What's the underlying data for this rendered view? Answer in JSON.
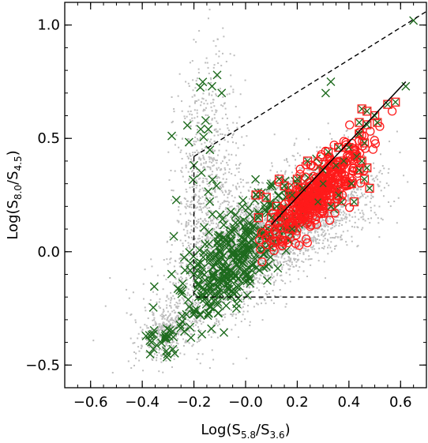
{
  "chart_data": {
    "type": "scatter",
    "xlabel": {
      "base": "Log(S",
      "sub1": "5.8",
      "mid": "/S",
      "sub2": "3.6",
      "end": ")"
    },
    "ylabel": {
      "base": "Log(S",
      "sub1": "8.0",
      "mid": "/S",
      "sub2": "4.5",
      "end": ")"
    },
    "xlim": [
      -0.7,
      0.7
    ],
    "ylim": [
      -0.6,
      1.1
    ],
    "x_ticks": [
      -0.6,
      -0.4,
      -0.2,
      0.0,
      0.2,
      0.4,
      0.6
    ],
    "x_tick_labels": [
      "−0.6",
      "−0.4",
      "−0.2",
      "−0.0",
      "0.2",
      "0.4",
      "0.6"
    ],
    "y_ticks": [
      -0.5,
      0.0,
      0.5,
      1.0
    ],
    "y_tick_labels": [
      "−0.5",
      "0.0",
      "0.5",
      "1.0"
    ],
    "grid": false,
    "colors": {
      "background_points": "#bdbdbd",
      "crosses": "#1e6b1e",
      "circles": "#ff1a1a",
      "lines": "#000000"
    },
    "background_cloud": [
      {
        "cx": 0.05,
        "cy": 0.05,
        "sx": 0.17,
        "sy": 0.17,
        "rho": 0.72,
        "n": 3200
      },
      {
        "cx": -0.15,
        "cy": 0.3,
        "sx": 0.06,
        "sy": 0.28,
        "rho": 0.1,
        "n": 800
      },
      {
        "cx": -0.3,
        "cy": -0.35,
        "sx": 0.06,
        "sy": 0.06,
        "rho": 0.5,
        "n": 400
      },
      {
        "cx": 0.3,
        "cy": 0.15,
        "sx": 0.12,
        "sy": 0.1,
        "rho": 0.6,
        "n": 600
      }
    ],
    "cross_cloud": [
      {
        "cx": -0.05,
        "cy": -0.05,
        "sx": 0.1,
        "sy": 0.12,
        "rho": 0.6,
        "n": 300
      },
      {
        "cx": 0.15,
        "cy": 0.2,
        "sx": 0.1,
        "sy": 0.08,
        "rho": 0.5,
        "n": 90
      },
      {
        "cx": -0.15,
        "cy": 0.45,
        "sx": 0.05,
        "sy": 0.25,
        "rho": 0.1,
        "n": 25
      },
      {
        "cx": -0.32,
        "cy": -0.38,
        "sx": 0.04,
        "sy": 0.05,
        "rho": 0.4,
        "n": 30
      }
    ],
    "cross_points_extra": [
      [
        0.65,
        1.02
      ],
      [
        -0.11,
        0.78
      ],
      [
        -0.13,
        0.73
      ],
      [
        0.33,
        0.75
      ],
      [
        0.62,
        0.73
      ],
      [
        0.31,
        0.7
      ]
    ],
    "circle_cloud": [
      {
        "cx": 0.27,
        "cy": 0.25,
        "sx": 0.09,
        "sy": 0.11,
        "rho": 0.8,
        "n": 420
      }
    ],
    "boxed_points": [
      [
        0.45,
        0.63
      ],
      [
        0.47,
        0.62
      ],
      [
        0.5,
        0.6
      ],
      [
        0.55,
        0.65
      ],
      [
        0.58,
        0.66
      ],
      [
        0.47,
        0.56
      ],
      [
        0.51,
        0.57
      ],
      [
        0.44,
        0.57
      ],
      [
        0.46,
        0.48
      ],
      [
        0.4,
        0.46
      ],
      [
        0.44,
        0.52
      ],
      [
        0.36,
        0.46
      ],
      [
        0.38,
        0.4
      ],
      [
        0.43,
        0.42
      ],
      [
        0.47,
        0.37
      ],
      [
        0.46,
        0.32
      ],
      [
        0.41,
        0.3
      ],
      [
        0.35,
        0.38
      ],
      [
        0.32,
        0.44
      ],
      [
        0.44,
        0.36
      ],
      [
        0.3,
        0.3
      ],
      [
        0.22,
        0.28
      ],
      [
        0.13,
        0.32
      ],
      [
        0.15,
        0.29
      ],
      [
        0.18,
        0.25
      ],
      [
        0.28,
        0.22
      ],
      [
        0.42,
        0.22
      ],
      [
        0.48,
        0.28
      ],
      [
        0.36,
        0.25
      ],
      [
        0.33,
        0.2
      ],
      [
        0.04,
        0.25
      ],
      [
        0.2,
        0.32
      ],
      [
        0.45,
        0.4
      ],
      [
        0.24,
        0.4
      ],
      [
        0.3,
        0.36
      ],
      [
        0.1,
        0.15
      ],
      [
        0.12,
        0.2
      ],
      [
        0.05,
        0.15
      ],
      [
        0.18,
        0.1
      ],
      [
        0.08,
        0.24
      ]
    ],
    "fit_line": [
      [
        0.1,
        0.12
      ],
      [
        0.62,
        0.75
      ]
    ],
    "wedge_lines": [
      [
        [
          -0.2,
          0.42
        ],
        [
          -0.2,
          -0.2
        ],
        [
          0.7,
          -0.2
        ]
      ],
      [
        [
          -0.2,
          0.42
        ],
        [
          0.7,
          1.06
        ]
      ]
    ]
  }
}
